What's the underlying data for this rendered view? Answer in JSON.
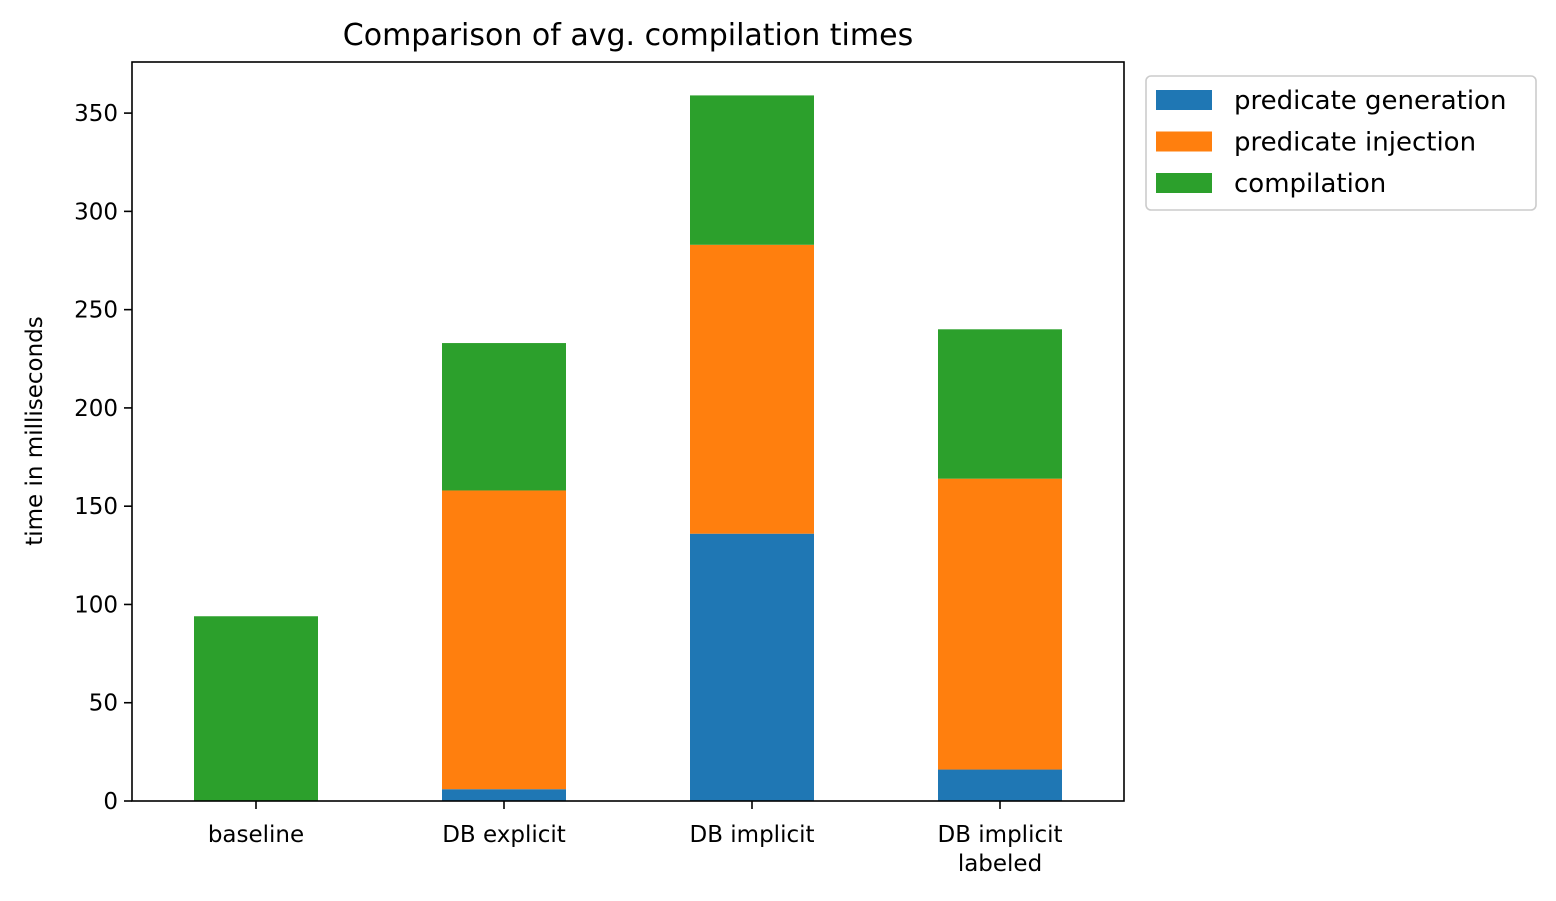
{
  "chart_data": {
    "type": "bar",
    "stacked": true,
    "title": "Comparison of avg. compilation times",
    "xlabel": "",
    "ylabel": "time in milliseconds",
    "categories": [
      [
        "baseline"
      ],
      [
        "DB explicit"
      ],
      [
        "DB implicit"
      ],
      [
        "DB implicit",
        "labeled"
      ]
    ],
    "ylim": [
      0,
      376
    ],
    "yticks": [
      0,
      50,
      100,
      150,
      200,
      250,
      300,
      350
    ],
    "grid": false,
    "legend_position": "outside-top-right",
    "series": [
      {
        "name": "predicate generation",
        "color": "#1f77b4",
        "values": [
          0,
          6,
          136,
          16
        ]
      },
      {
        "name": "predicate injection",
        "color": "#ff7f0e",
        "values": [
          0,
          152,
          147,
          148
        ]
      },
      {
        "name": "compilation",
        "color": "#2ca02c",
        "values": [
          94,
          75,
          76,
          76
        ]
      }
    ]
  }
}
